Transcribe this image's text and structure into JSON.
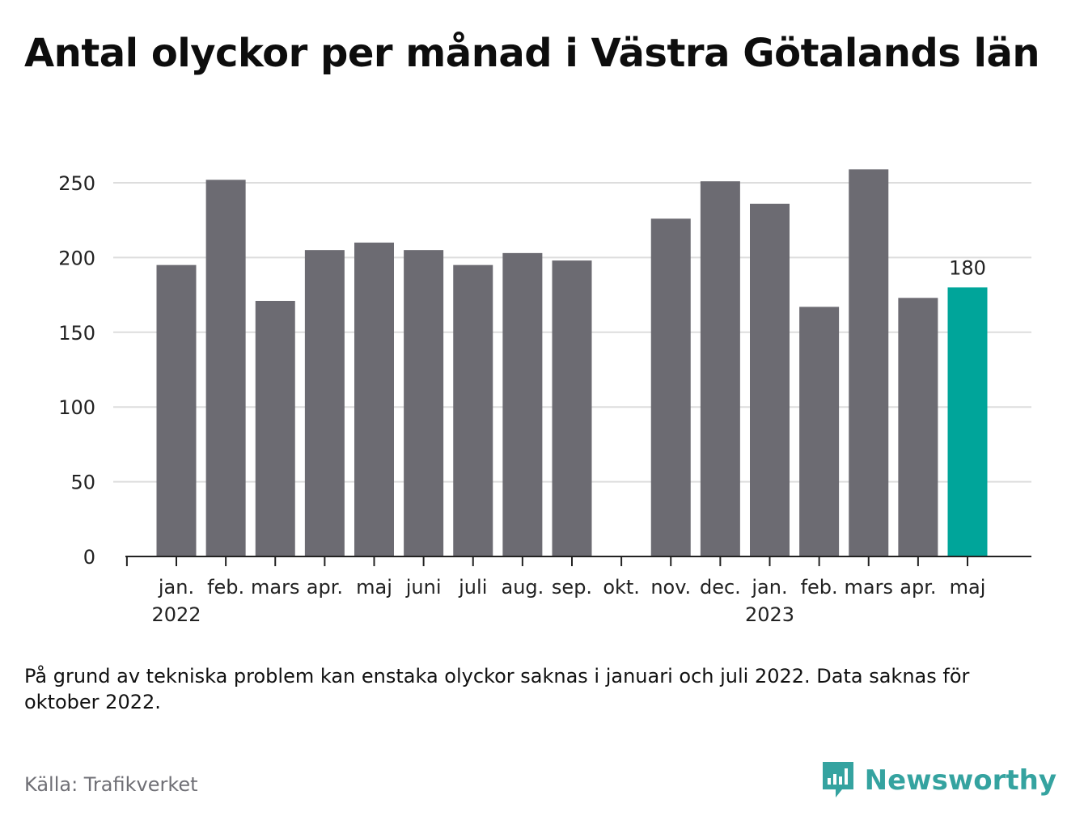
{
  "title": "Antal olyckor per månad i Västra Götalands län",
  "note": "På grund av tekniska problem kan enstaka olyckor saknas i januari och juli 2022. Data saknas för oktober 2022.",
  "source": "Källa: Trafikverket",
  "brand": {
    "name": "Newsworthy",
    "icon": "newsworthy-logo-icon"
  },
  "colors": {
    "bar": "#6c6b72",
    "highlight": "#00a59a",
    "grid": "#dddddd",
    "axis": "#222222"
  },
  "chart_data": {
    "type": "bar",
    "categories": [
      "jan.",
      "feb.",
      "mars",
      "apr.",
      "maj",
      "juni",
      "juli",
      "aug.",
      "sep.",
      "okt.",
      "nov.",
      "dec.",
      "jan.",
      "feb.",
      "mars",
      "apr.",
      "maj"
    ],
    "year_labels": [
      {
        "index": 0,
        "label": "2022"
      },
      {
        "index": 12,
        "label": "2023"
      }
    ],
    "values": [
      195,
      252,
      171,
      205,
      210,
      205,
      195,
      203,
      198,
      null,
      226,
      251,
      236,
      167,
      259,
      173,
      180
    ],
    "highlight_index": 16,
    "data_labels": [
      {
        "index": 16,
        "label": "180"
      }
    ],
    "yticks": [
      0,
      50,
      100,
      150,
      200,
      250
    ],
    "ylim": [
      0,
      270
    ],
    "grid": true,
    "xlabel": "",
    "ylabel": ""
  }
}
